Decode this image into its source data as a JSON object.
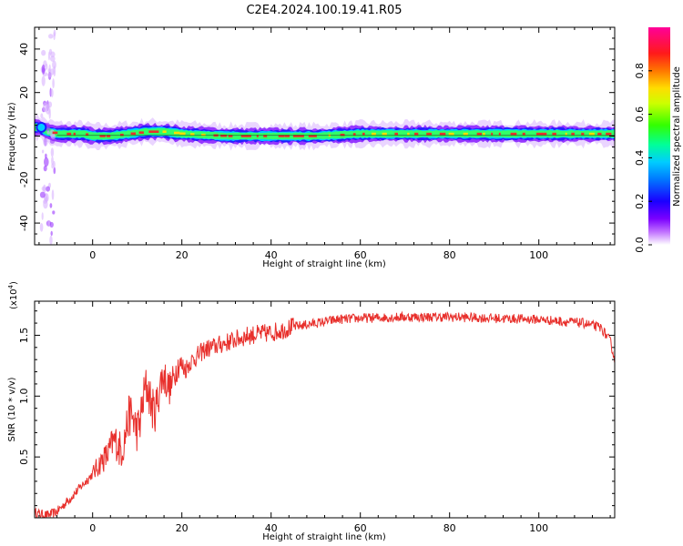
{
  "title": "C2E4.2024.100.19.41.R05",
  "colors": {
    "snr_line": "#e8302c",
    "spectrum_core": "#e8302c",
    "colorbar_stops": [
      "#ffffff",
      "#7a00ff",
      "#0000ff",
      "#00ccff",
      "#00ff66",
      "#33ff00",
      "#ffee00",
      "#ff6a00",
      "#ff0033",
      "#ff0099"
    ]
  },
  "chart_data": [
    {
      "type": "heatmap",
      "name": "spectrogram",
      "xlabel": "Height of straight line (km)",
      "ylabel": "Frequency (Hz)",
      "xlim": [
        -13,
        117
      ],
      "ylim": [
        -50,
        50
      ],
      "xticks": [
        0,
        20,
        40,
        60,
        80,
        100
      ],
      "yticks": [
        -40,
        -20,
        0,
        20,
        40
      ],
      "colorbar": {
        "label": "Normalized spectral amplitude",
        "range": [
          0,
          1
        ],
        "ticks": [
          "0.0",
          "0.2",
          "0.4",
          "0.6",
          "0.8"
        ]
      },
      "ridge": {
        "x": [
          -12,
          -10,
          -8,
          -6,
          -4,
          -2,
          0,
          4,
          8,
          12,
          16,
          20,
          30,
          40,
          50,
          60,
          70,
          80,
          90,
          100,
          110,
          116
        ],
        "freq_hz": [
          4,
          2,
          1,
          1,
          1,
          1,
          0,
          0,
          1,
          2,
          2,
          1,
          0,
          0,
          0,
          1,
          1,
          1,
          1,
          1,
          1,
          1
        ]
      }
    },
    {
      "type": "line",
      "name": "snr",
      "xlabel": "Height of straight line (km)",
      "ylabel": "SNR (10 * v/v)",
      "multiplier_label": "(x10",
      "multiplier_exp": "4",
      "multiplier_close": ")",
      "xlim": [
        -13,
        117
      ],
      "ylim": [
        0,
        1.78
      ],
      "xticks": [
        0,
        20,
        40,
        60,
        80,
        100
      ],
      "yticks": [
        0.5,
        1.0,
        1.5
      ],
      "ytick_labels": [
        "0.5",
        "1.0",
        "1.5"
      ],
      "envelope": {
        "x": [
          -13,
          -10,
          -8,
          -5,
          -2,
          0,
          3,
          6,
          9,
          12,
          15,
          18,
          21,
          25,
          30,
          35,
          40,
          45,
          50,
          55,
          60,
          70,
          80,
          90,
          100,
          110,
          114,
          116,
          117
        ],
        "y": [
          0.04,
          0.02,
          0.05,
          0.16,
          0.28,
          0.36,
          0.52,
          0.62,
          0.78,
          0.95,
          1.02,
          1.18,
          1.25,
          1.38,
          1.44,
          1.5,
          1.52,
          1.57,
          1.6,
          1.63,
          1.64,
          1.65,
          1.65,
          1.64,
          1.63,
          1.6,
          1.56,
          1.45,
          1.3
        ]
      }
    }
  ]
}
